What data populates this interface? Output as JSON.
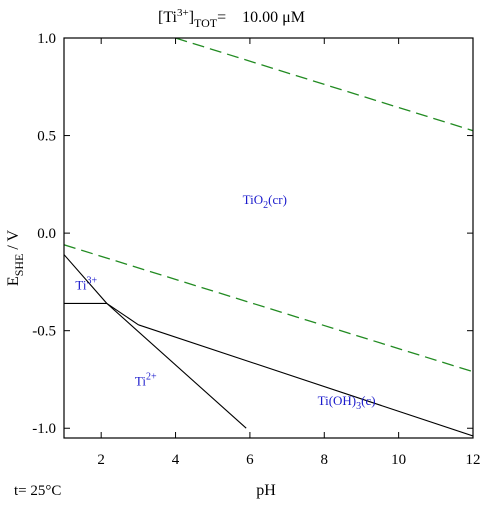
{
  "chart_data": {
    "type": "line",
    "title": {
      "species": "[Ti",
      "charge": "3+",
      "bracket": "]",
      "sub": "TOT",
      "eq": "=",
      "value": "10.00 μM"
    },
    "xlabel": "pH",
    "ylabel": {
      "main": "E",
      "sub": "SHE",
      "unit": " / V"
    },
    "xlim": [
      1,
      12
    ],
    "ylim": [
      -1.05,
      1.0
    ],
    "xticks": [
      "2",
      "4",
      "6",
      "8",
      "10",
      "12"
    ],
    "xtick_values": [
      2,
      4,
      6,
      8,
      10,
      12
    ],
    "yticks": [
      "1.0",
      "0.5",
      "0.0",
      "-0.5",
      "-1.0"
    ],
    "ytick_values": [
      1.0,
      0.5,
      0.0,
      -0.5,
      -1.0
    ],
    "footer": "t= 25°C",
    "colors": {
      "boundary": "#000000",
      "water": "#228b22",
      "label": "#1a1acc"
    },
    "series": [
      {
        "style": "dashed",
        "color": "#228b22",
        "points": [
          [
            4.0,
            1.0
          ],
          [
            12.0,
            0.525
          ]
        ]
      },
      {
        "style": "dashed",
        "color": "#228b22",
        "points": [
          [
            1.0,
            -0.06
          ],
          [
            12.0,
            -0.71
          ]
        ]
      },
      {
        "style": "solid",
        "color": "#000000",
        "points": [
          [
            1.0,
            -0.36
          ],
          [
            2.15,
            -0.36
          ]
        ]
      },
      {
        "style": "solid",
        "color": "#000000",
        "points": [
          [
            1.0,
            -0.11
          ],
          [
            2.15,
            -0.36
          ],
          [
            3.0,
            -0.47
          ]
        ]
      },
      {
        "style": "solid",
        "color": "#000000",
        "points": [
          [
            3.0,
            -0.47
          ],
          [
            12.0,
            -1.04
          ]
        ]
      },
      {
        "style": "solid",
        "color": "#000000",
        "points": [
          [
            2.15,
            -0.36
          ],
          [
            5.9,
            -1.0
          ]
        ]
      }
    ],
    "regions": [
      {
        "name": "TiO",
        "sub": "2",
        "tail": "(cr)",
        "x": 6.4,
        "y": 0.15
      },
      {
        "name": "Ti",
        "sup": "3+",
        "tail": "",
        "x": 1.6,
        "y": -0.29
      },
      {
        "name": "Ti",
        "sup": "2+",
        "tail": "",
        "x": 3.2,
        "y": -0.78
      },
      {
        "name": "Ti(OH)",
        "sub": "3",
        "tail": "(c)",
        "x": 8.6,
        "y": -0.88
      }
    ]
  }
}
